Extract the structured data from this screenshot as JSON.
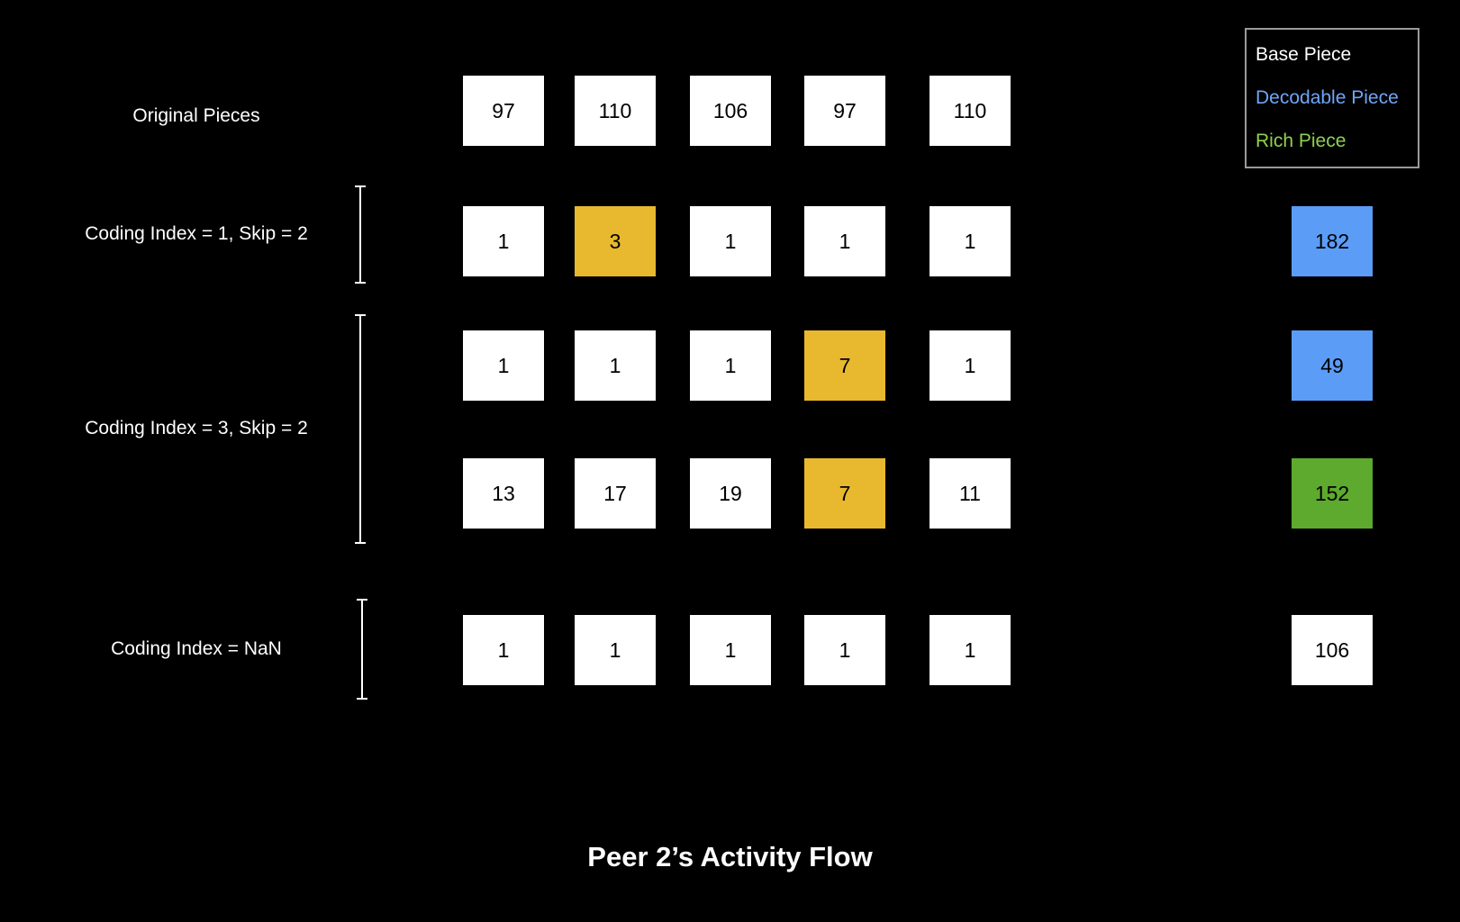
{
  "colors": {
    "base": "#ffffff",
    "coding_highlight": "#e8b82e",
    "decodable": "#5b9cf6",
    "rich": "#5daa2e",
    "legend_base_text": "#ffffff",
    "legend_decodable_text": "#6ea6f7",
    "legend_rich_text": "#8fd14f"
  },
  "legend": {
    "base": "Base Piece",
    "decodable": "Decodable Piece",
    "rich": "Rich Piece"
  },
  "labels": {
    "original": "Original Pieces",
    "coding1": "Coding Index = 1, Skip = 2",
    "coding3": "Coding Index = 3, Skip = 2",
    "codingNaN": "Coding Index = NaN"
  },
  "rows": [
    {
      "cells": [
        "97",
        "110",
        "106",
        "97",
        "110"
      ],
      "highlight": null,
      "result": null,
      "result_kind": null
    },
    {
      "cells": [
        "1",
        "3",
        "1",
        "1",
        "1"
      ],
      "highlight": 1,
      "result": "182",
      "result_kind": "decodable"
    },
    {
      "cells": [
        "1",
        "1",
        "1",
        "7",
        "1"
      ],
      "highlight": 3,
      "result": "49",
      "result_kind": "decodable"
    },
    {
      "cells": [
        "13",
        "17",
        "19",
        "7",
        "11"
      ],
      "highlight": 3,
      "result": "152",
      "result_kind": "rich"
    },
    {
      "cells": [
        "1",
        "1",
        "1",
        "1",
        "1"
      ],
      "highlight": null,
      "result": "106",
      "result_kind": "base"
    }
  ],
  "footer": {
    "title": "Peer 2’s Activity Flow"
  }
}
